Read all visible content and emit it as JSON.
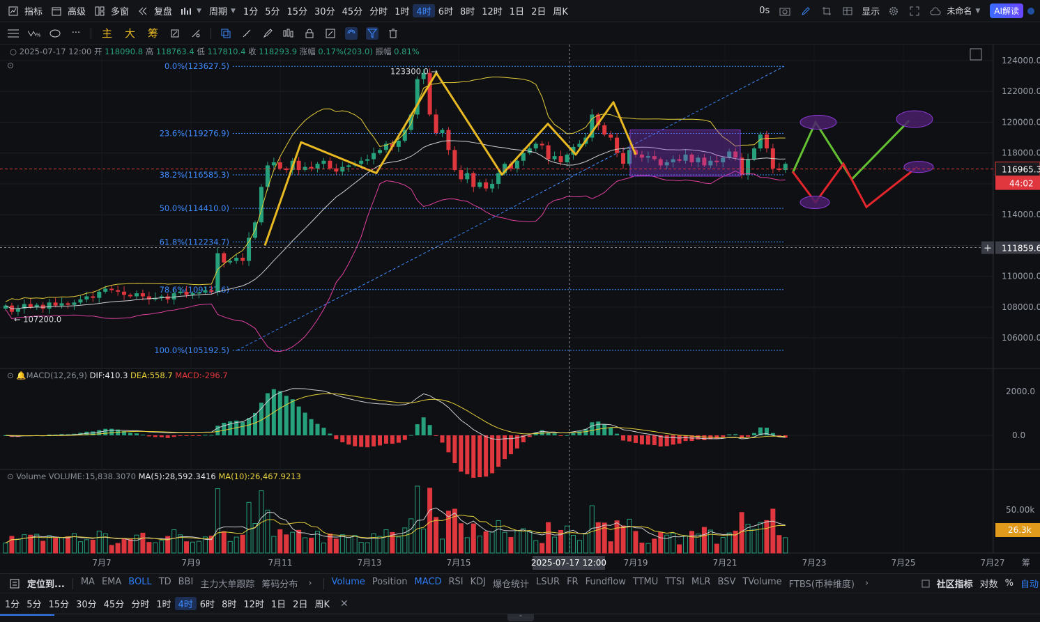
{
  "toolbar": {
    "indicator": "指标",
    "advanced": "高级",
    "multi_window": "多窗",
    "restore": "复盘",
    "period": "周期",
    "intervals": [
      "1分",
      "5分",
      "15分",
      "30分",
      "45分",
      "分时",
      "1时",
      "4时",
      "6时",
      "8时",
      "12时",
      "1日",
      "2日",
      "周K"
    ],
    "active_interval": "4时",
    "latency": "0s",
    "display": "显示",
    "unnamed": "未命名",
    "ai": "AI解读"
  },
  "drawbar": {
    "main": "主",
    "big": "大",
    "chips": "筹"
  },
  "info": {
    "datetime": "2025-07-17 12:00",
    "open_label": "开",
    "open": "118090.8",
    "high_label": "高",
    "high": "118763.4",
    "low_label": "低",
    "low": "117810.4",
    "close_label": "收",
    "close": "118293.9",
    "chg_label": "涨幅",
    "chg": "0.17%(203.0)",
    "amp_label": "振幅",
    "amp": "0.81%"
  },
  "macd_legend": {
    "name": "MACD(12,26,9)",
    "dif": "DIF:410.3",
    "dea": "DEA:558.7",
    "macd": "MACD:-296.7"
  },
  "volume_legend": {
    "name": "Volume",
    "volume": "VOLUME:15,838.3070",
    "ma5": "MA(5):28,592.3416",
    "ma10": "MA(10):26,467.9213"
  },
  "indicators_bar": {
    "locate": "定位到...",
    "main_list": [
      "MA",
      "EMA",
      "BOLL",
      "TD",
      "BBI",
      "主力大单跟踪",
      "筹码分布"
    ],
    "main_active": "BOLL",
    "sub_list": [
      "Volume",
      "Position",
      "MACD",
      "RSI",
      "KDJ",
      "爆仓统计",
      "LSUR",
      "FR",
      "Fundflow",
      "TTMU",
      "TTSI",
      "MLR",
      "BSV",
      "TVolume",
      "FTBS(币种维度)"
    ],
    "sub_active": [
      "Volume",
      "MACD"
    ],
    "community": "社区指标",
    "log": "对数",
    "percent": "%",
    "auto": "自动"
  },
  "bottom_intervals": {
    "items": [
      "1分",
      "5分",
      "15分",
      "30分",
      "45分",
      "分时",
      "1时",
      "4时",
      "6时",
      "8时",
      "12时",
      "1日",
      "2日",
      "周K"
    ],
    "active": "4时"
  },
  "colors": {
    "up": "#26a17b",
    "down": "#e0373f",
    "boll_upper": "#e6cf3b",
    "boll_mid": "#cfcfcf",
    "boll_lower": "#e040a0",
    "pattern": "#e8b923",
    "fib": "#3d8bff",
    "proj_green": "#63c132",
    "proj_red": "#e3262c",
    "highlight_box": "#8a3ad6"
  },
  "chart_data": {
    "type": "candlestick",
    "symbol_interval": "4时",
    "price_axis": {
      "ticks": [
        "124000.0",
        "122000.0",
        "120000.0",
        "118000.0",
        "116000.0",
        "114000.0",
        "112000.0",
        "110000.0",
        "108000.0",
        "106000.0"
      ],
      "range": [
        104200,
        124800
      ],
      "last_price": "116965.3",
      "countdown": "44:02",
      "crosshair_price": "111859.6"
    },
    "x_axis": {
      "labels": [
        "7月7",
        "7月9",
        "7月11",
        "7月13",
        "7月15",
        "7月19",
        "7月21",
        "7月23",
        "7月25",
        "7月27"
      ],
      "crosshair_label": "2025-07-17 12:00"
    },
    "fibonacci": [
      {
        "label": "0.0%(123627.5)",
        "price": 123627.5
      },
      {
        "label": "23.6%(119276.9)",
        "price": 119276.9
      },
      {
        "label": "38.2%(116585.3)",
        "price": 116585.3
      },
      {
        "label": "50.0%(114410.0)",
        "price": 114410.0
      },
      {
        "label": "61.8%(112234.7)",
        "price": 112234.7
      },
      {
        "label": "78.6%(109137.6)",
        "price": 109137.6
      },
      {
        "label": "100.0%(105192.5)",
        "price": 105192.5
      }
    ],
    "annotations": {
      "high": "123300.0",
      "low": "107200.0"
    },
    "closes": [
      108100,
      107700,
      107900,
      108200,
      108000,
      108150,
      107900,
      108300,
      108100,
      108250,
      108150,
      108300,
      108500,
      108700,
      108600,
      109000,
      109200,
      109100,
      109000,
      108800,
      108700,
      108900,
      108700,
      108500,
      108600,
      108700,
      108500,
      108900,
      109000,
      108800,
      108900,
      108950,
      109100,
      109000,
      111500,
      110900,
      111000,
      111200,
      111000,
      112500,
      113500,
      115800,
      117200,
      117400,
      117000,
      116900,
      117500,
      116900,
      117100,
      117000,
      117300,
      117500,
      117000,
      116800,
      117100,
      117200,
      117300,
      117500,
      117600,
      118000,
      118200,
      118600,
      118400,
      118800,
      119500,
      120500,
      122800,
      123200,
      120500,
      119300,
      119500,
      118200,
      116900,
      116300,
      116700,
      115800,
      116100,
      115700,
      116000,
      116700,
      117300,
      117000,
      117500,
      118000,
      118300,
      118600,
      118500,
      117600,
      117800,
      117400,
      117900,
      118400,
      118600,
      119000,
      120500,
      119800,
      119200,
      119000,
      118000,
      117300,
      118200,
      117900,
      117700,
      117800,
      117600,
      117200,
      117400,
      117600,
      117500,
      117900,
      117400,
      117700,
      117200,
      117500,
      117400,
      117700,
      118100,
      117700,
      116600,
      117600,
      118300,
      119200,
      118300,
      117000,
      116900,
      117300
    ]
  },
  "macd_axis": [
    "2000.0",
    "0.0"
  ],
  "volume_axis": {
    "tick": "50.00k",
    "current": "26.3k"
  }
}
